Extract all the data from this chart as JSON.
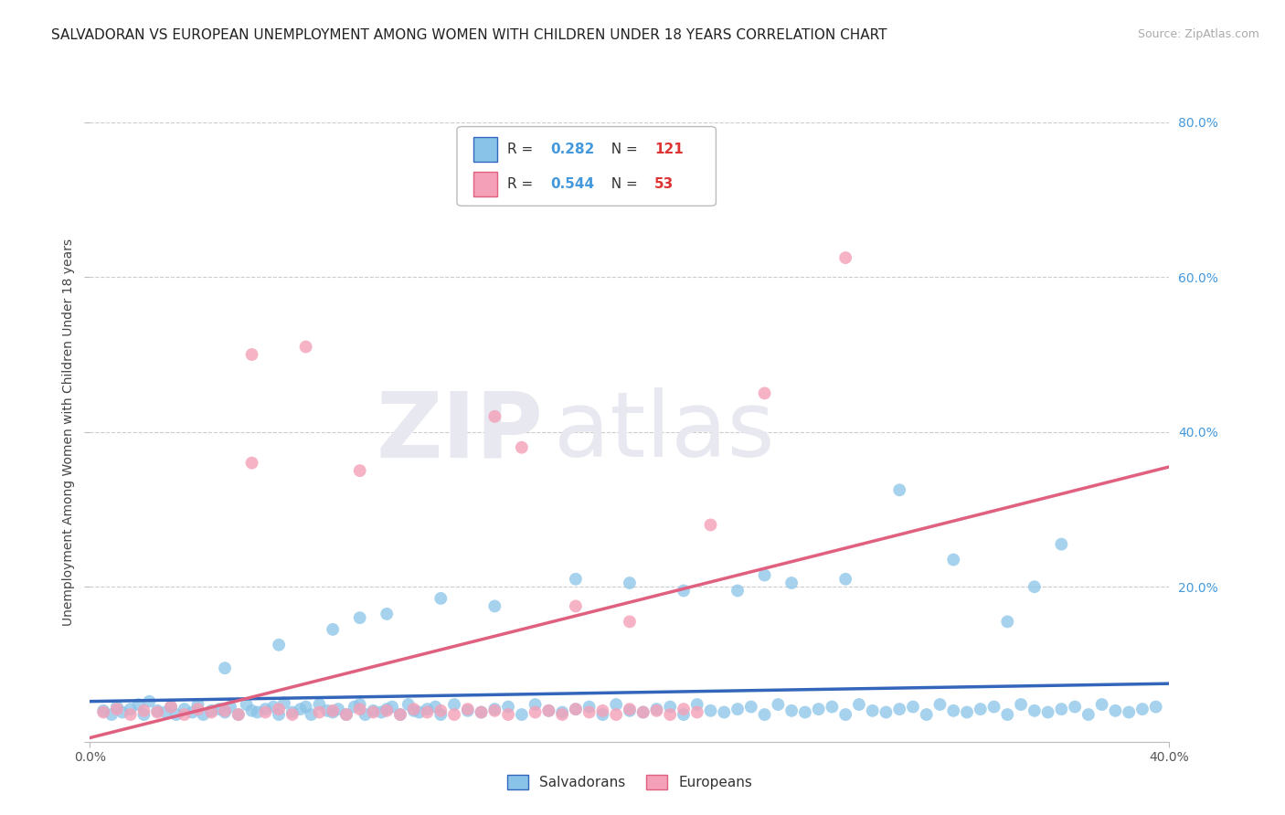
{
  "title": "SALVADORAN VS EUROPEAN UNEMPLOYMENT AMONG WOMEN WITH CHILDREN UNDER 18 YEARS CORRELATION CHART",
  "source": "Source: ZipAtlas.com",
  "ylabel": "Unemployment Among Women with Children Under 18 years",
  "xlim": [
    0.0,
    0.4
  ],
  "ylim": [
    0.0,
    0.8
  ],
  "yticks": [
    0.0,
    0.2,
    0.4,
    0.6,
    0.8
  ],
  "ytick_labels": [
    "",
    "20.0%",
    "40.0%",
    "60.0%",
    "80.0%"
  ],
  "title_fontsize": 11,
  "axis_label_fontsize": 10,
  "tick_fontsize": 10,
  "color_blue": "#89c4e8",
  "color_blue_line": "#3366bb",
  "color_pink": "#f4a0b8",
  "color_pink_line": "#e06080",
  "color_R_text": "#4499dd",
  "color_N_text": "#dd3333",
  "background_color": "#ffffff",
  "grid_color": "#cccccc",
  "watermark_zip": "ZIP",
  "watermark_atlas": "atlas",
  "blue_line_x0": 0.0,
  "blue_line_x1": 0.4,
  "blue_line_y0": 0.052,
  "blue_line_y1": 0.075,
  "pink_line_x0": 0.0,
  "pink_line_x1": 0.4,
  "pink_line_y0": 0.005,
  "pink_line_y1": 0.355,
  "blue_x": [
    0.005,
    0.008,
    0.01,
    0.012,
    0.015,
    0.018,
    0.02,
    0.022,
    0.025,
    0.028,
    0.03,
    0.032,
    0.035,
    0.038,
    0.04,
    0.042,
    0.045,
    0.048,
    0.05,
    0.052,
    0.055,
    0.058,
    0.06,
    0.062,
    0.065,
    0.068,
    0.07,
    0.072,
    0.075,
    0.078,
    0.08,
    0.082,
    0.085,
    0.088,
    0.09,
    0.092,
    0.095,
    0.098,
    0.1,
    0.102,
    0.105,
    0.108,
    0.11,
    0.112,
    0.115,
    0.118,
    0.12,
    0.122,
    0.125,
    0.128,
    0.13,
    0.135,
    0.14,
    0.145,
    0.15,
    0.155,
    0.16,
    0.165,
    0.17,
    0.175,
    0.18,
    0.185,
    0.19,
    0.195,
    0.2,
    0.205,
    0.21,
    0.215,
    0.22,
    0.225,
    0.23,
    0.235,
    0.24,
    0.245,
    0.25,
    0.255,
    0.26,
    0.265,
    0.27,
    0.275,
    0.28,
    0.285,
    0.29,
    0.295,
    0.3,
    0.305,
    0.31,
    0.315,
    0.32,
    0.325,
    0.33,
    0.335,
    0.34,
    0.345,
    0.35,
    0.355,
    0.36,
    0.365,
    0.37,
    0.375,
    0.38,
    0.385,
    0.39,
    0.395,
    0.18,
    0.22,
    0.26,
    0.3,
    0.34,
    0.2,
    0.24,
    0.28,
    0.32,
    0.36,
    0.15,
    0.25,
    0.35,
    0.1,
    0.05,
    0.07,
    0.09,
    0.11,
    0.13
  ],
  "blue_y": [
    0.04,
    0.035,
    0.045,
    0.038,
    0.042,
    0.048,
    0.035,
    0.052,
    0.04,
    0.038,
    0.045,
    0.035,
    0.042,
    0.038,
    0.048,
    0.035,
    0.04,
    0.042,
    0.038,
    0.045,
    0.035,
    0.048,
    0.04,
    0.038,
    0.042,
    0.045,
    0.035,
    0.05,
    0.038,
    0.042,
    0.045,
    0.035,
    0.048,
    0.04,
    0.038,
    0.042,
    0.035,
    0.045,
    0.048,
    0.035,
    0.04,
    0.038,
    0.042,
    0.045,
    0.035,
    0.048,
    0.04,
    0.038,
    0.042,
    0.045,
    0.035,
    0.048,
    0.04,
    0.038,
    0.042,
    0.045,
    0.035,
    0.048,
    0.04,
    0.038,
    0.042,
    0.045,
    0.035,
    0.048,
    0.04,
    0.038,
    0.042,
    0.045,
    0.035,
    0.048,
    0.04,
    0.038,
    0.042,
    0.045,
    0.035,
    0.048,
    0.04,
    0.038,
    0.042,
    0.045,
    0.035,
    0.048,
    0.04,
    0.038,
    0.042,
    0.045,
    0.035,
    0.048,
    0.04,
    0.038,
    0.042,
    0.045,
    0.035,
    0.048,
    0.04,
    0.038,
    0.042,
    0.045,
    0.035,
    0.048,
    0.04,
    0.038,
    0.042,
    0.045,
    0.21,
    0.195,
    0.205,
    0.325,
    0.155,
    0.205,
    0.195,
    0.21,
    0.235,
    0.255,
    0.175,
    0.215,
    0.2,
    0.16,
    0.095,
    0.125,
    0.145,
    0.165,
    0.185
  ],
  "pink_x": [
    0.005,
    0.01,
    0.015,
    0.02,
    0.025,
    0.03,
    0.035,
    0.04,
    0.045,
    0.05,
    0.055,
    0.06,
    0.065,
    0.07,
    0.075,
    0.08,
    0.085,
    0.09,
    0.095,
    0.1,
    0.105,
    0.11,
    0.115,
    0.12,
    0.125,
    0.13,
    0.135,
    0.14,
    0.145,
    0.15,
    0.155,
    0.16,
    0.165,
    0.17,
    0.175,
    0.18,
    0.185,
    0.19,
    0.195,
    0.2,
    0.205,
    0.21,
    0.215,
    0.22,
    0.225,
    0.23,
    0.28,
    0.06,
    0.1,
    0.15,
    0.2,
    0.25,
    0.18
  ],
  "pink_y": [
    0.038,
    0.042,
    0.035,
    0.04,
    0.038,
    0.045,
    0.035,
    0.042,
    0.038,
    0.04,
    0.035,
    0.36,
    0.038,
    0.042,
    0.035,
    0.51,
    0.038,
    0.04,
    0.035,
    0.042,
    0.038,
    0.04,
    0.035,
    0.042,
    0.038,
    0.04,
    0.035,
    0.042,
    0.038,
    0.04,
    0.035,
    0.38,
    0.038,
    0.04,
    0.035,
    0.042,
    0.038,
    0.04,
    0.035,
    0.042,
    0.038,
    0.04,
    0.035,
    0.042,
    0.038,
    0.28,
    0.625,
    0.5,
    0.35,
    0.42,
    0.155,
    0.45,
    0.175
  ]
}
